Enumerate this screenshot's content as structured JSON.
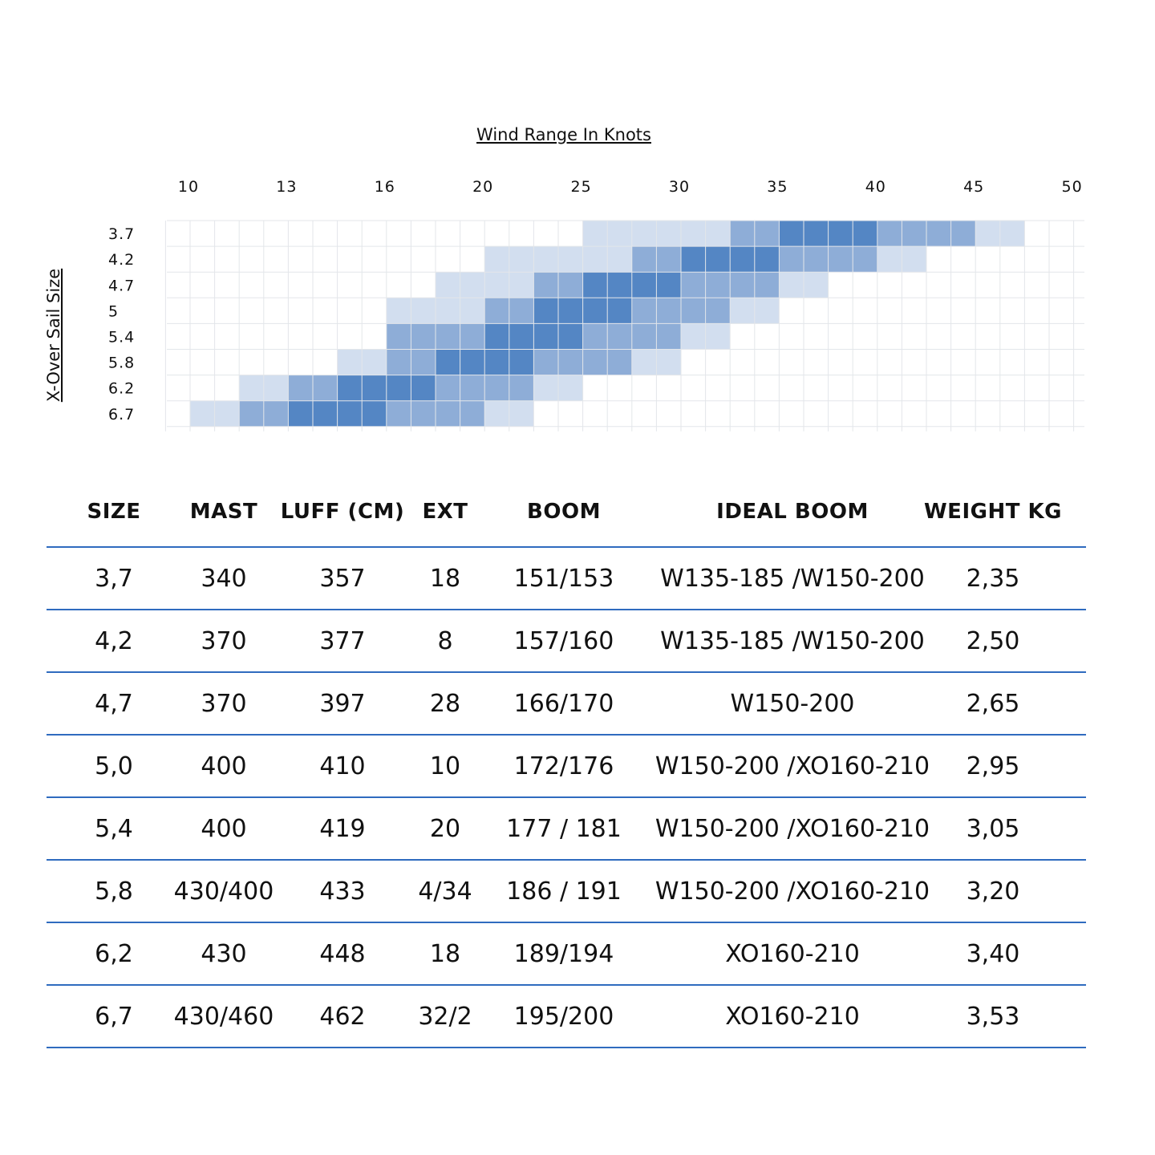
{
  "chart_data": {
    "type": "heatmap",
    "title": "Wind Range In Knots",
    "ylabel": "X-Over Sail Size",
    "x_tick_labels": [
      "10",
      "13",
      "16",
      "20",
      "25",
      "30",
      "35",
      "40",
      "45",
      "50"
    ],
    "y_labels": [
      "3.7",
      "4.2",
      "4.7",
      "5",
      "5.4",
      "5.8",
      "6.2",
      "6.7"
    ],
    "columns": 18,
    "levels": {
      "0": "#ffffff",
      "1": "#d2deef",
      "2": "#8eadd7",
      "3": "#5486c4"
    },
    "grid": true,
    "rows": [
      [
        0,
        0,
        0,
        0,
        0,
        0,
        0,
        0,
        1,
        1,
        1,
        2,
        3,
        3,
        2,
        2,
        1,
        0
      ],
      [
        0,
        0,
        0,
        0,
        0,
        0,
        1,
        1,
        1,
        2,
        3,
        3,
        2,
        2,
        1,
        0,
        0,
        0
      ],
      [
        0,
        0,
        0,
        0,
        0,
        1,
        1,
        2,
        3,
        3,
        2,
        2,
        1,
        0,
        0,
        0,
        0,
        0
      ],
      [
        0,
        0,
        0,
        0,
        1,
        1,
        2,
        3,
        3,
        2,
        2,
        1,
        0,
        0,
        0,
        0,
        0,
        0
      ],
      [
        0,
        0,
        0,
        0,
        2,
        2,
        3,
        3,
        2,
        2,
        1,
        0,
        0,
        0,
        0,
        0,
        0,
        0
      ],
      [
        0,
        0,
        0,
        1,
        2,
        3,
        3,
        2,
        2,
        1,
        0,
        0,
        0,
        0,
        0,
        0,
        0,
        0
      ],
      [
        0,
        1,
        2,
        3,
        3,
        2,
        2,
        1,
        0,
        0,
        0,
        0,
        0,
        0,
        0,
        0,
        0,
        0
      ],
      [
        1,
        2,
        3,
        3,
        2,
        2,
        1,
        0,
        0,
        0,
        0,
        0,
        0,
        0,
        0,
        0,
        0,
        0
      ]
    ]
  },
  "table": {
    "headers": [
      "SIZE",
      "MAST",
      "LUFF (CM)",
      "EXT",
      "BOOM",
      "IDEAL BOOM",
      "WEIGHT KG"
    ],
    "rows": [
      [
        "3,7",
        "340",
        "357",
        "18",
        "151/153",
        "W135-185 /W150-200",
        "2,35"
      ],
      [
        "4,2",
        "370",
        "377",
        "8",
        "157/160",
        "W135-185 /W150-200",
        "2,50"
      ],
      [
        "4,7",
        "370",
        "397",
        "28",
        "166/170",
        "W150-200",
        "2,65"
      ],
      [
        "5,0",
        "400",
        "410",
        "10",
        "172/176",
        "W150-200 /XO160-210",
        "2,95"
      ],
      [
        "5,4",
        "400",
        "419",
        "20",
        "177 / 181",
        "W150-200 /XO160-210",
        "3,05"
      ],
      [
        "5,8",
        "430/400",
        "433",
        "4/34",
        "186 / 191",
        "W150-200 /XO160-210",
        "3,20"
      ],
      [
        "6,2",
        "430",
        "448",
        "18",
        "189/194",
        "XO160-210",
        "3,40"
      ],
      [
        "6,7",
        "430/460",
        "462",
        "32/2",
        "195/200",
        "XO160-210",
        "3,53"
      ]
    ],
    "divider_color": "#2f6bbf"
  }
}
